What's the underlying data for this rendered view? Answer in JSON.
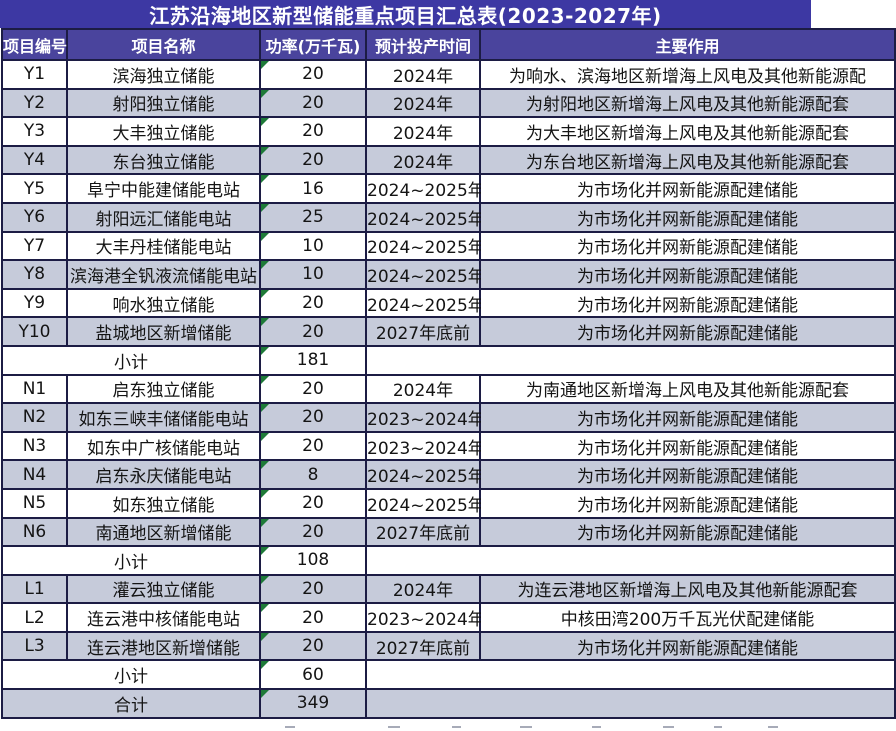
{
  "title": "江苏沿海地区新型储能重点项目汇总表(2023-2027年)",
  "columns": [
    "项目编号",
    "项目名称",
    "功率(万千瓦)",
    "预计投产时间",
    "主要作用"
  ],
  "rows": [
    {
      "kind": "data",
      "id": "Y1",
      "name": "滨海独立储能",
      "power": "20",
      "time": "2024年",
      "role": "为响水、滨海地区新增海上风电及其他新能源配",
      "shaded": false
    },
    {
      "kind": "data",
      "id": "Y2",
      "name": "射阳独立储能",
      "power": "20",
      "time": "2024年",
      "role": "为射阳地区新增海上风电及其他新能源配套",
      "shaded": true
    },
    {
      "kind": "data",
      "id": "Y3",
      "name": "大丰独立储能",
      "power": "20",
      "time": "2024年",
      "role": "为大丰地区新增海上风电及其他新能源配套",
      "shaded": false
    },
    {
      "kind": "data",
      "id": "Y4",
      "name": "东台独立储能",
      "power": "20",
      "time": "2024年",
      "role": "为东台地区新增海上风电及其他新能源配套",
      "shaded": true
    },
    {
      "kind": "data",
      "id": "Y5",
      "name": "阜宁中能建储能电站",
      "power": "16",
      "time": "2024~2025年",
      "role": "为市场化并网新能源配建储能",
      "shaded": false
    },
    {
      "kind": "data",
      "id": "Y6",
      "name": "射阳远汇储能电站",
      "power": "25",
      "time": "2024~2025年",
      "role": "为市场化并网新能源配建储能",
      "shaded": true
    },
    {
      "kind": "data",
      "id": "Y7",
      "name": "大丰丹桂储能电站",
      "power": "10",
      "time": "2024~2025年",
      "role": "为市场化并网新能源配建储能",
      "shaded": false
    },
    {
      "kind": "data",
      "id": "Y8",
      "name": "滨海港全钒液流储能电站",
      "power": "10",
      "time": "2024~2025年",
      "role": "为市场化并网新能源配建储能",
      "shaded": true
    },
    {
      "kind": "data",
      "id": "Y9",
      "name": "响水独立储能",
      "power": "20",
      "time": "2024~2025年",
      "role": "为市场化并网新能源配建储能",
      "shaded": false
    },
    {
      "kind": "data",
      "id": "Y10",
      "name": "盐城地区新增储能",
      "power": "20",
      "time": "2027年底前",
      "role": "为市场化并网新能源配建储能",
      "shaded": true
    },
    {
      "kind": "subtotal",
      "label": "小计",
      "power": "181",
      "shaded": false
    },
    {
      "kind": "data",
      "id": "N1",
      "name": "启东独立储能",
      "power": "20",
      "time": "2024年",
      "role": "为南通地区新增海上风电及其他新能源配套",
      "shaded": false
    },
    {
      "kind": "data",
      "id": "N2",
      "name": "如东三峡丰储储能电站",
      "power": "20",
      "time": "2023~2024年",
      "role": "为市场化并网新能源配建储能",
      "shaded": true
    },
    {
      "kind": "data",
      "id": "N3",
      "name": "如东中广核储能电站",
      "power": "20",
      "time": "2023~2024年",
      "role": "为市场化并网新能源配建储能",
      "shaded": false
    },
    {
      "kind": "data",
      "id": "N4",
      "name": "启东永庆储能电站",
      "power": "8",
      "time": "2024~2025年",
      "role": "为市场化并网新能源配建储能",
      "shaded": true
    },
    {
      "kind": "data",
      "id": "N5",
      "name": "如东独立储能",
      "power": "20",
      "time": "2024~2025年",
      "role": "为市场化并网新能源配建储能",
      "shaded": false
    },
    {
      "kind": "data",
      "id": "N6",
      "name": "南通地区新增储能",
      "power": "20",
      "time": "2027年底前",
      "role": "为市场化并网新能源配建储能",
      "shaded": true
    },
    {
      "kind": "subtotal",
      "label": "小计",
      "power": "108",
      "shaded": false
    },
    {
      "kind": "data",
      "id": "L1",
      "name": "灌云独立储能",
      "power": "20",
      "time": "2024年",
      "role": "为连云港地区新增海上风电及其他新能源配套",
      "shaded": true
    },
    {
      "kind": "data",
      "id": "L2",
      "name": "连云港中核储能电站",
      "power": "20",
      "time": "2023~2024年",
      "role": "中核田湾200万千瓦光伏配建储能",
      "shaded": false
    },
    {
      "kind": "data",
      "id": "L3",
      "name": "连云港地区新增储能",
      "power": "20",
      "time": "2027年底前",
      "role": "为市场化并网新能源配建储能",
      "shaded": true
    },
    {
      "kind": "subtotal",
      "label": "小计",
      "power": "60",
      "shaded": false
    },
    {
      "kind": "total",
      "label": "合计",
      "power": "349",
      "shaded": true
    }
  ],
  "colors": {
    "title_bg": "#3d38a3",
    "header_bg": "#4a449d",
    "header_text": "#ffffff",
    "row_shade": "#c6cbda",
    "grid_border": "#1c1c44",
    "corner_marker_green": "#1e7a38",
    "body_text": "#141414"
  }
}
